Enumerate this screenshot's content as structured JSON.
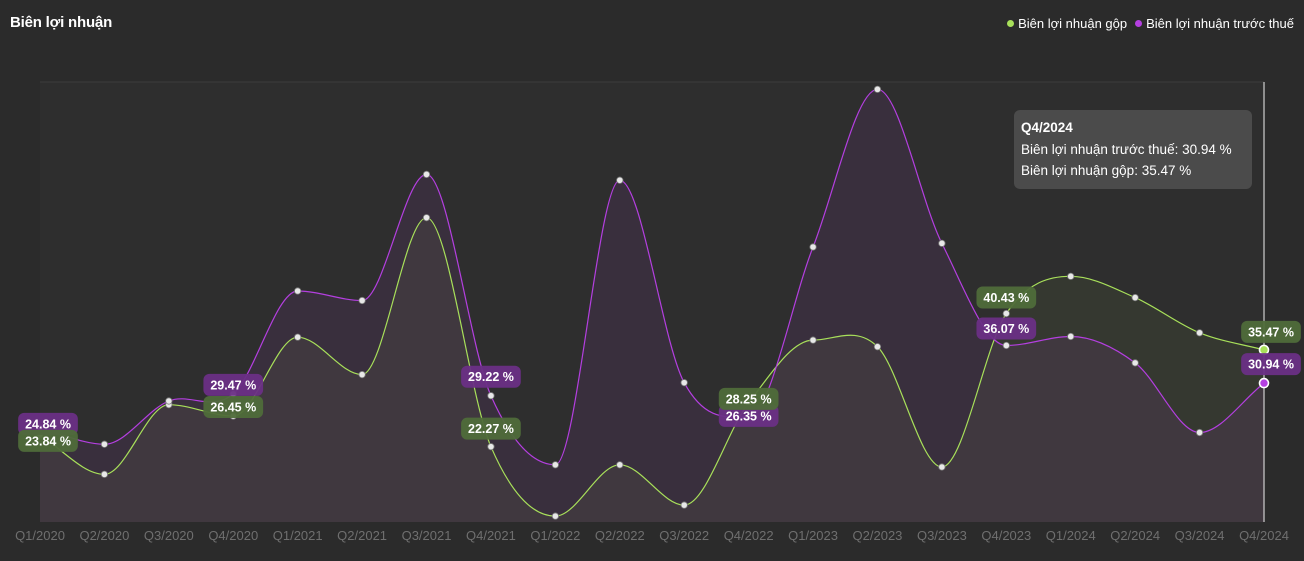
{
  "title": "Biên lợi nhuận",
  "legend": {
    "gross_label": "Biên lợi nhuận gộp",
    "pretax_label": "Biên lợi nhuận trước thuế"
  },
  "colors": {
    "background": "#2b2b2b",
    "gross": "#a8e05a",
    "pretax": "#b43fe0",
    "gross_label_bg": "#4f6b3a",
    "pretax_label_bg": "#6a2f85"
  },
  "tooltip": {
    "title": "Q4/2024",
    "line1": "Biên lợi nhuận trước thuế: 30.94 %",
    "line2": "Biên lợi nhuận gộp: 35.47 %"
  },
  "chart_data": {
    "type": "line",
    "categories": [
      "Q1/2020",
      "Q2/2020",
      "Q3/2020",
      "Q4/2020",
      "Q1/2021",
      "Q2/2021",
      "Q3/2021",
      "Q4/2021",
      "Q1/2022",
      "Q2/2022",
      "Q3/2022",
      "Q4/2022",
      "Q1/2023",
      "Q2/2023",
      "Q3/2023",
      "Q4/2023",
      "Q1/2024",
      "Q2/2024",
      "Q3/2024",
      "Q4/2024"
    ],
    "series": [
      {
        "name": "Biên lợi nhuận gộp",
        "key": "gross",
        "values": [
          23.84,
          18.5,
          28.0,
          26.45,
          37.2,
          32.1,
          53.5,
          22.27,
          12.8,
          19.8,
          14.3,
          28.25,
          36.8,
          35.9,
          19.5,
          40.43,
          45.5,
          42.6,
          37.8,
          35.47
        ],
        "labels": {
          "0": "23.84 %",
          "3": "26.45 %",
          "7": "22.27 %",
          "11": "28.25 %",
          "15": "40.43 %",
          "19": "35.47 %"
        }
      },
      {
        "name": "Biên lợi nhuận trước thuế",
        "key": "pretax",
        "values": [
          24.84,
          22.6,
          28.5,
          29.47,
          43.5,
          42.2,
          59.4,
          29.22,
          19.8,
          58.6,
          31.0,
          26.35,
          49.5,
          71.0,
          50.0,
          36.07,
          37.3,
          33.7,
          24.2,
          30.94
        ],
        "labels": {
          "0": "24.84 %",
          "3": "29.47 %",
          "7": "29.22 %",
          "11": "26.35 %",
          "15": "36.07 %",
          "19": "30.94 %"
        }
      }
    ],
    "ylim": [
      12,
      72
    ],
    "grid": false,
    "legend_position": "top-right",
    "highlighted_category": "Q4/2024"
  }
}
